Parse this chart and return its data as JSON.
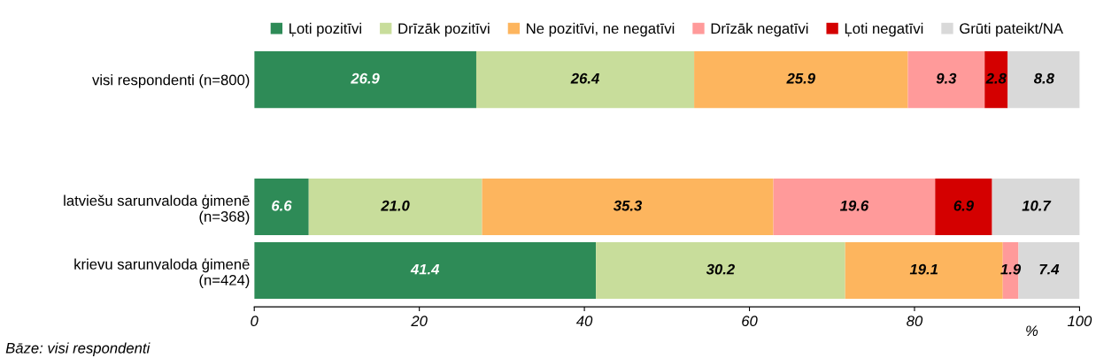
{
  "chart_data": {
    "type": "bar",
    "orientation": "horizontal",
    "stacked": true,
    "legend": "top",
    "grid": false,
    "categories": [
      "visi respondenti (n=800)",
      null,
      "latviešu sarunvaloda ģimenē\n(n=368)",
      "krievu sarunvaloda ģimenē\n(n=424)"
    ],
    "series": [
      {
        "name": "Ļoti pozitīvi",
        "color": "#2e8b57",
        "values": [
          26.9,
          null,
          6.6,
          41.4
        ],
        "value_labels": [
          "26.9",
          null,
          "6.6",
          "41.4"
        ]
      },
      {
        "name": "Drīzāk pozitīvi",
        "color": "#c8dd9b",
        "values": [
          26.4,
          null,
          21.0,
          30.2
        ],
        "value_labels": [
          "26.4",
          null,
          "21.0",
          "30.2"
        ]
      },
      {
        "name": "Ne pozitīvi, ne negatīvi",
        "color": "#fdb55e",
        "values": [
          25.9,
          null,
          35.3,
          19.1
        ],
        "value_labels": [
          "25.9",
          null,
          "35.3",
          "19.1"
        ]
      },
      {
        "name": "Drīzāk negatīvi",
        "color": "#ff9a9a",
        "values": [
          9.3,
          null,
          19.6,
          1.9
        ],
        "value_labels": [
          "9.3",
          null,
          "19.6",
          "1.9"
        ]
      },
      {
        "name": "Ļoti negatīvi",
        "color": "#d40000",
        "values": [
          2.8,
          null,
          6.9,
          0
        ],
        "value_labels": [
          "2.8",
          null,
          "6.9",
          null
        ]
      },
      {
        "name": "Grūti pateikt/NA",
        "color": "#d9d9d9",
        "values": [
          8.8,
          null,
          10.7,
          7.4
        ],
        "value_labels": [
          "8.8",
          null,
          "10.7",
          "7.4"
        ]
      }
    ],
    "xlim": [
      0,
      100
    ],
    "xticks": [
      0,
      20,
      40,
      60,
      80,
      100
    ],
    "xlabel": "%",
    "annotations": [
      "Bāze: visi respondenti"
    ]
  }
}
